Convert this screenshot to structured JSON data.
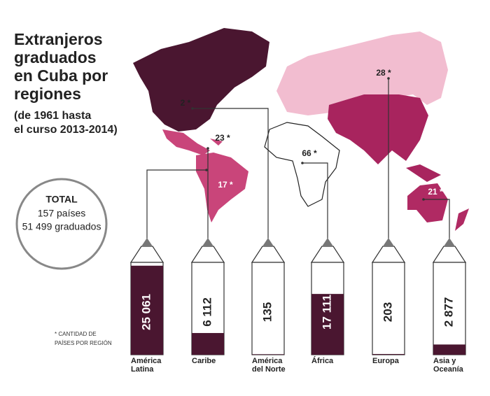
{
  "chart_data": {
    "type": "bar",
    "title_lines": [
      "Extranjeros",
      "graduados",
      "en Cuba por",
      "regiones"
    ],
    "subtitle_lines": [
      "(de 1961 hasta",
      "el curso 2013-2014)"
    ],
    "total": {
      "heading": "TOTAL",
      "lines": [
        "157 países",
        "51 499 graduados"
      ]
    },
    "note_lines": [
      "* CANTIDAD DE",
      "PAÍSES POR REGIÓN"
    ],
    "categories": [
      "América Latina",
      "Caribe",
      "América del Norte",
      "África",
      "Europa",
      "Asia y Oceanía"
    ],
    "values": [
      25061,
      6112,
      135,
      17111,
      203,
      2877
    ],
    "value_labels": [
      "25 061",
      "6 112",
      "135",
      "17 111",
      "203",
      "2 877"
    ],
    "country_counts": [
      17,
      23,
      2,
      66,
      28,
      21
    ],
    "country_count_labels": [
      "17 *",
      "23 *",
      "2 *",
      "66 *",
      "28 *",
      "21 *"
    ],
    "ylim": [
      0,
      26000
    ],
    "color": "#4a1630"
  }
}
